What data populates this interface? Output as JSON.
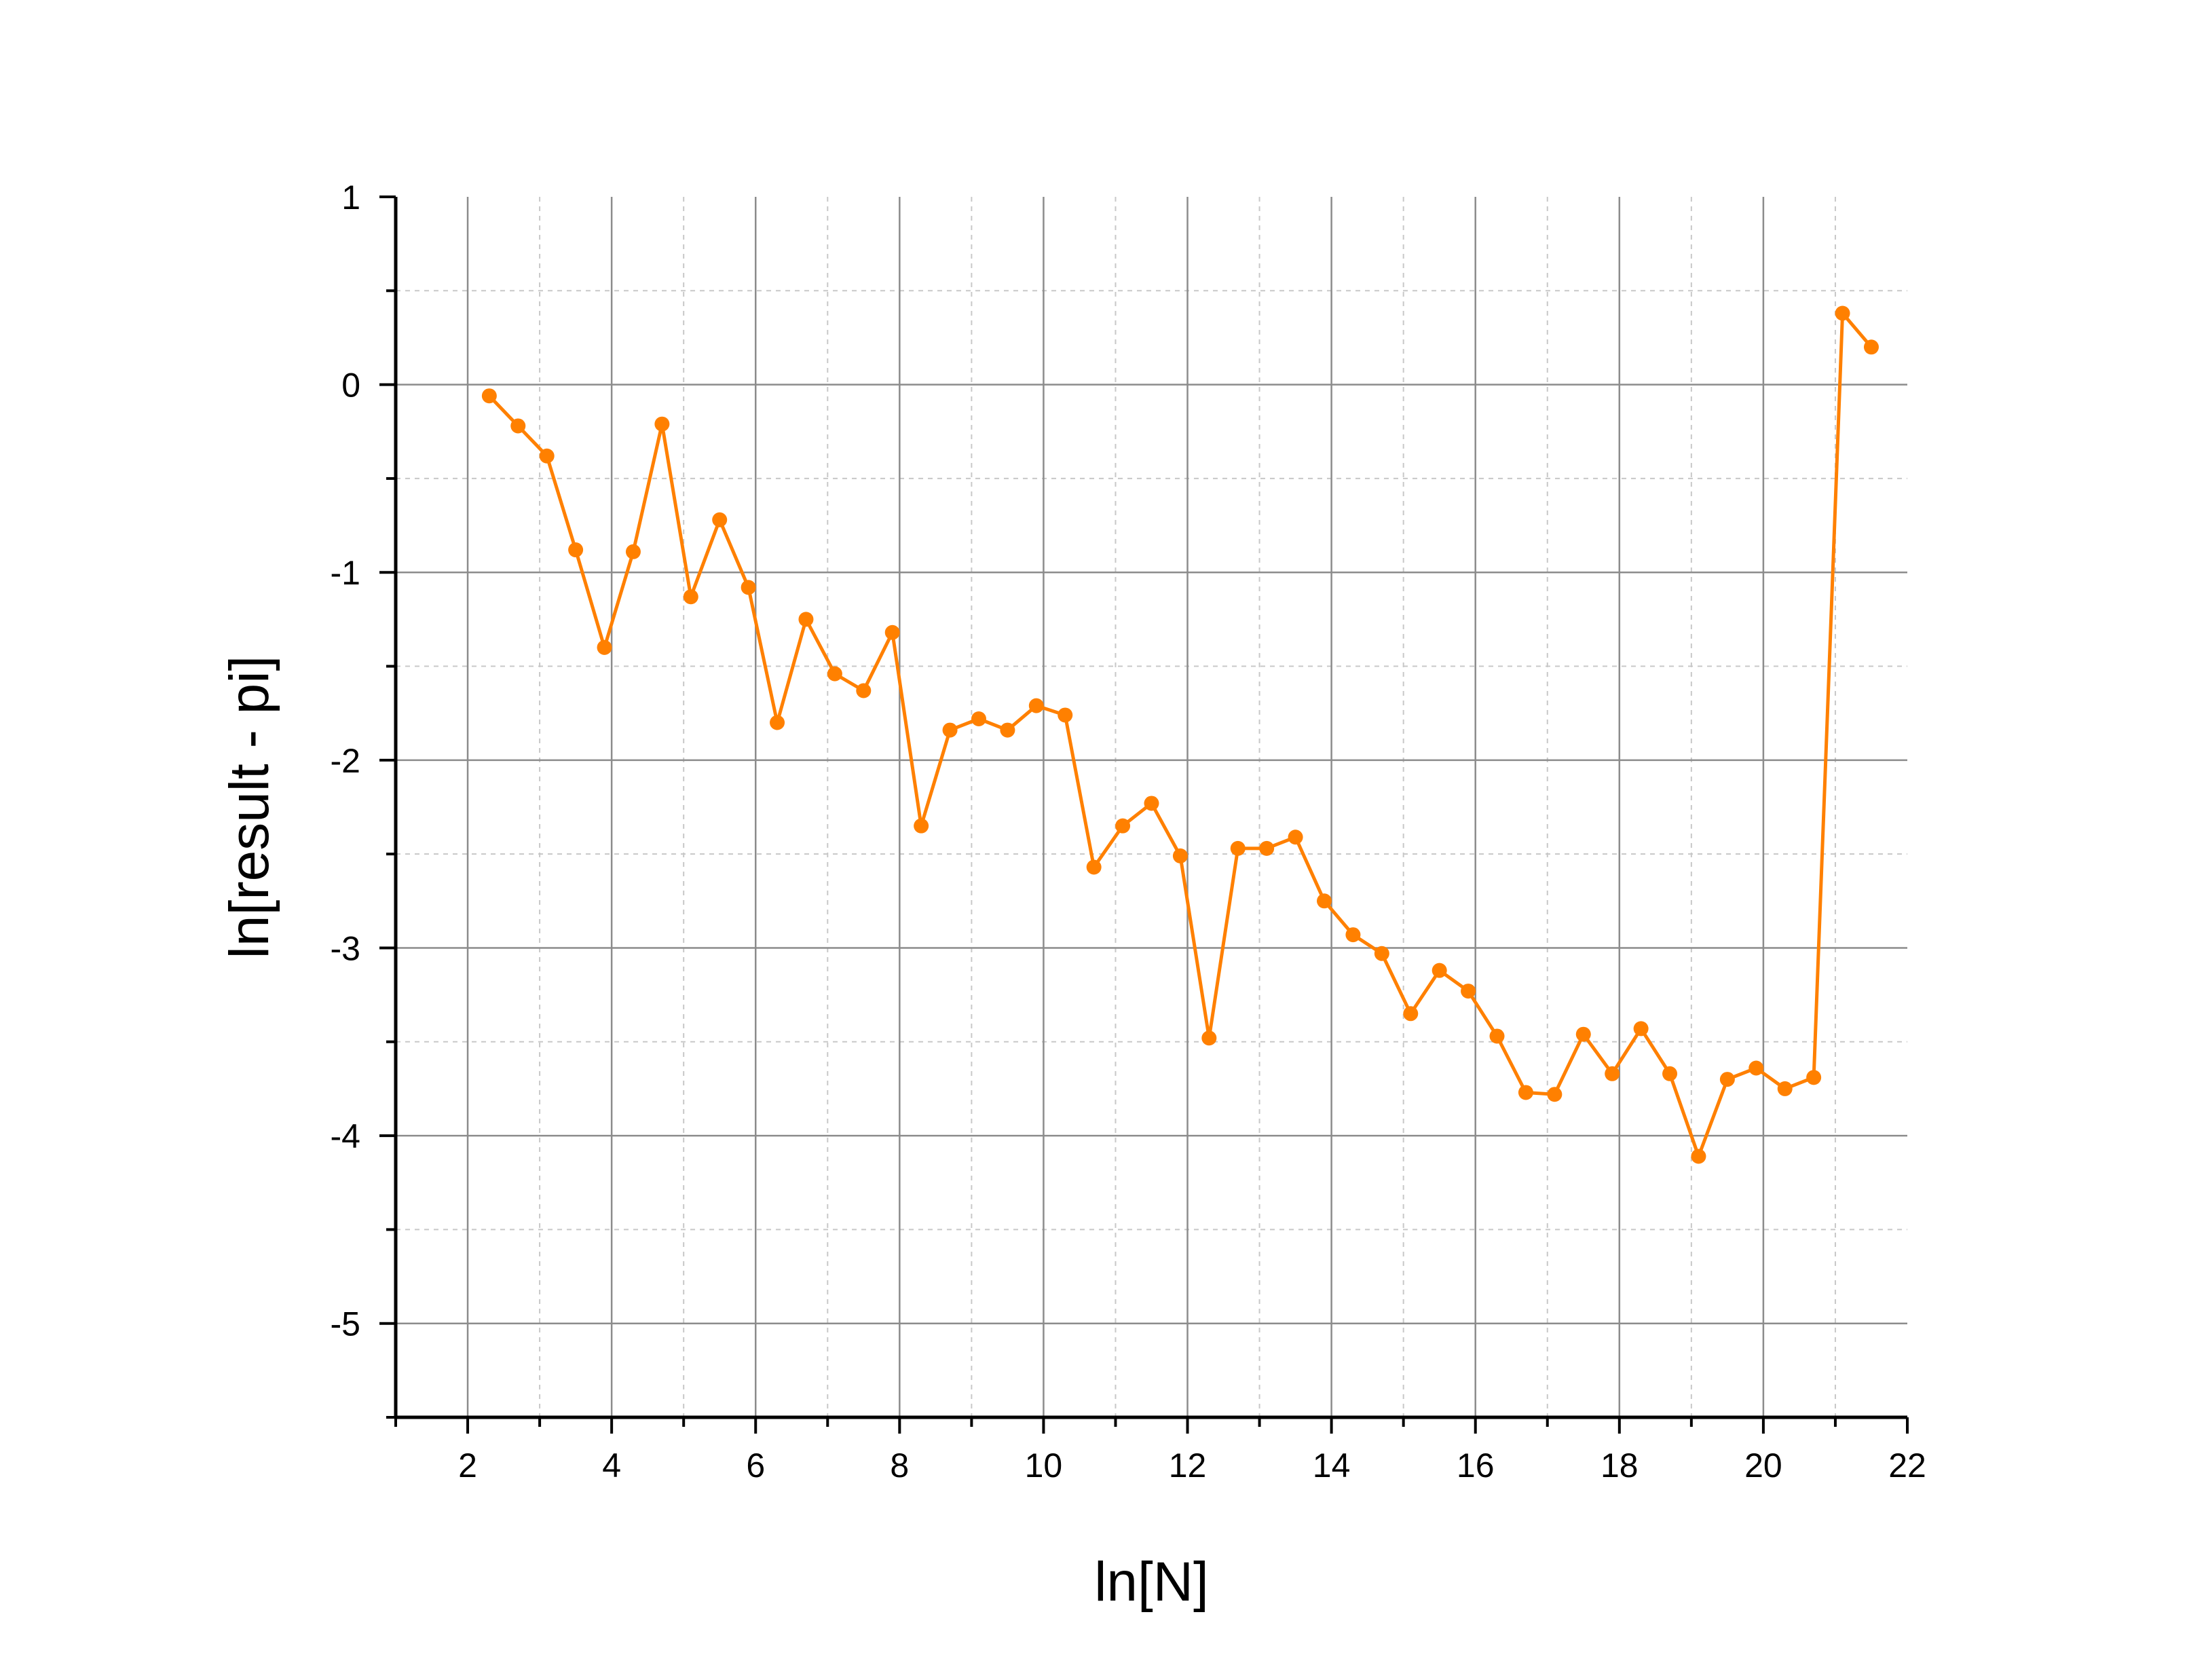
{
  "chart_data": {
    "type": "line",
    "title": "",
    "xlabel": "ln[N]",
    "ylabel": "ln[result - pi]",
    "xlim": [
      1,
      22
    ],
    "ylim": [
      -5.5,
      1
    ],
    "x_ticks": [
      2,
      4,
      6,
      8,
      10,
      12,
      14,
      16,
      18,
      20,
      22
    ],
    "y_ticks": [
      1,
      0,
      -1,
      -2,
      -3,
      -4,
      -5
    ],
    "x_tick_labels": [
      "2",
      "4",
      "6",
      "8",
      "10",
      "12",
      "14",
      "16",
      "18",
      "20",
      "22"
    ],
    "y_tick_labels": [
      "1",
      "0",
      "-1",
      "-2",
      "-3",
      "-4",
      "-5"
    ],
    "grid": true,
    "legend": "none",
    "series": [
      {
        "color": "#ff8000",
        "marker": "circle",
        "x": [
          2.3,
          2.7,
          3.1,
          3.5,
          3.9,
          4.3,
          4.7,
          5.1,
          5.5,
          5.9,
          6.3,
          6.7,
          7.1,
          7.5,
          7.9,
          8.3,
          8.7,
          9.1,
          9.5,
          9.9,
          10.3,
          10.7,
          11.1,
          11.5,
          11.9,
          12.3,
          12.7,
          13.1,
          13.5,
          13.9,
          14.3,
          14.7,
          15.1,
          15.5,
          15.9,
          16.3,
          16.7,
          17.1,
          17.5,
          17.9,
          18.3,
          18.7,
          19.1,
          19.5,
          19.9,
          20.3,
          20.7,
          21.1,
          21.5
        ],
        "y": [
          -0.06,
          -0.22,
          -0.38,
          -0.88,
          -1.4,
          -0.89,
          -0.21,
          -1.13,
          -0.72,
          -1.08,
          -1.8,
          -1.25,
          -1.54,
          -1.63,
          -1.32,
          -2.35,
          -1.84,
          -1.78,
          -1.84,
          -1.71,
          -1.76,
          -2.57,
          -2.35,
          -2.23,
          -2.51,
          -3.48,
          -2.47,
          -2.47,
          -2.41,
          -2.75,
          -2.93,
          -3.03,
          -3.35,
          -3.12,
          -3.23,
          -3.47,
          -3.77,
          -3.78,
          -3.46,
          -3.67,
          -3.43,
          -3.67,
          -4.11,
          -3.7,
          -3.64,
          -3.75,
          -3.69,
          0.38,
          0.2
        ]
      }
    ]
  }
}
